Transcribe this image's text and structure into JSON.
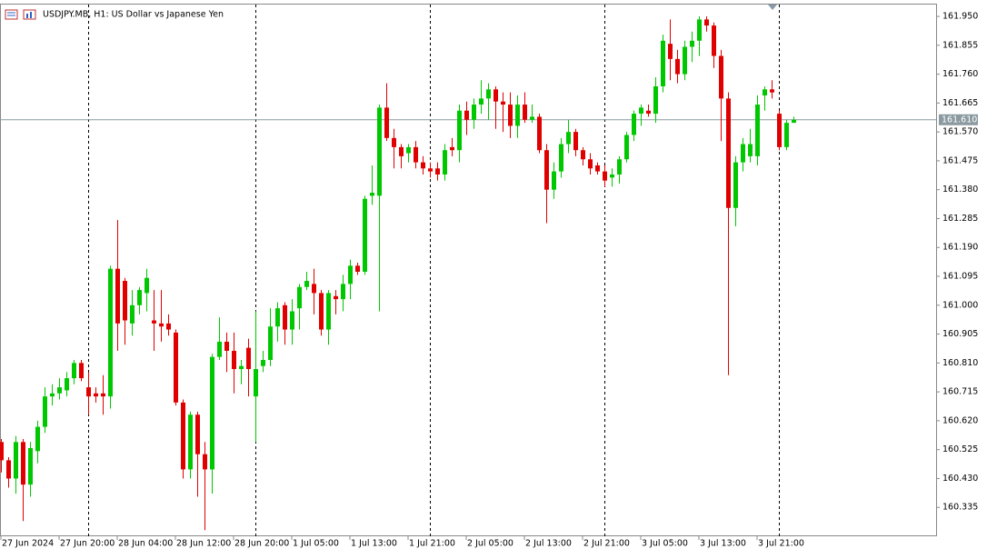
{
  "chart_data": {
    "type": "candlestick",
    "title": "USDJPY.MB, H1:  US Dollar vs Japanese Yen",
    "categories": [
      "27 Jun 2024",
      null,
      null,
      null,
      null,
      null,
      null,
      null,
      "27 Jun 20:00",
      null,
      null,
      null,
      null,
      null,
      null,
      null,
      "28 Jun 04:00",
      null,
      null,
      null,
      null,
      null,
      null,
      null,
      "28 Jun 12:00",
      null,
      null,
      null,
      null,
      null,
      null,
      null,
      "28 Jun 20:00",
      null,
      null,
      null,
      null,
      null,
      null,
      null,
      "1 Jul 05:00",
      null,
      null,
      null,
      null,
      null,
      null,
      null,
      "1 Jul 13:00",
      null,
      null,
      null,
      null,
      null,
      null,
      null,
      "1 Jul 21:00",
      null,
      null,
      null,
      null,
      null,
      null,
      null,
      "2 Jul 05:00",
      null,
      null,
      null,
      null,
      null,
      null,
      null,
      "2 Jul 13:00",
      null,
      null,
      null,
      null,
      null,
      null,
      null,
      "2 Jul 21:00",
      null,
      null,
      null,
      null,
      null,
      null,
      null,
      "3 Jul 05:00",
      null,
      null,
      null,
      null,
      null,
      null,
      null,
      "3 Jul 13:00",
      null,
      null,
      null,
      null,
      null,
      null,
      null,
      "3 Jul 21:00",
      null,
      null,
      null,
      null,
      null
    ],
    "open": [
      160.55,
      160.49,
      160.43,
      160.55,
      160.41,
      160.52,
      160.6,
      160.7,
      160.71,
      160.72,
      160.76,
      160.81,
      160.73,
      160.71,
      160.71,
      160.7,
      161.12,
      161.08,
      160.94,
      161.0,
      161.04,
      160.95,
      160.94,
      160.94,
      160.91,
      160.68,
      160.46,
      160.64,
      160.51,
      160.46,
      160.83,
      160.88,
      160.85,
      160.79,
      160.86,
      160.7,
      160.8,
      160.82,
      160.93,
      161.0,
      160.92,
      160.99,
      161.06,
      161.07,
      161.04,
      160.92,
      161.03,
      161.02,
      161.07,
      161.13,
      161.11,
      161.36,
      161.36,
      161.65,
      161.55,
      161.52,
      161.5,
      161.52,
      161.47,
      161.45,
      161.45,
      161.43,
      161.52,
      161.51,
      161.64,
      161.61,
      161.66,
      161.68,
      161.71,
      161.67,
      161.66,
      161.59,
      161.66,
      161.61,
      161.62,
      161.51,
      161.38,
      161.44,
      161.53,
      161.57,
      161.51,
      161.48,
      161.46,
      161.44,
      161.42,
      161.43,
      161.48,
      161.56,
      161.63,
      161.64,
      161.63,
      161.72,
      161.86,
      161.81,
      161.76,
      161.85,
      161.87,
      161.94,
      161.92,
      161.82,
      161.68,
      161.32,
      161.47,
      161.49,
      161.49,
      161.69,
      161.71,
      161.63,
      161.52,
      161.6
    ],
    "high": [
      160.56,
      160.5,
      160.57,
      160.56,
      160.55,
      160.62,
      160.73,
      160.74,
      160.76,
      160.78,
      160.82,
      160.82,
      160.78,
      160.73,
      160.77,
      161.13,
      161.28,
      161.09,
      161.05,
      161.06,
      161.12,
      161.05,
      161.05,
      160.97,
      160.92,
      160.69,
      160.65,
      160.65,
      160.55,
      160.84,
      160.96,
      160.91,
      160.91,
      160.82,
      160.89,
      160.98,
      160.85,
      160.99,
      161.01,
      161.01,
      161.02,
      161.07,
      161.11,
      161.12,
      161.05,
      161.05,
      161.05,
      161.1,
      161.15,
      161.14,
      161.36,
      161.46,
      161.66,
      161.73,
      161.58,
      161.53,
      161.53,
      161.54,
      161.49,
      161.47,
      161.47,
      161.53,
      161.55,
      161.66,
      161.67,
      161.68,
      161.74,
      161.73,
      161.72,
      161.7,
      161.7,
      161.69,
      161.7,
      161.66,
      161.63,
      161.53,
      161.47,
      161.55,
      161.61,
      161.58,
      161.52,
      161.5,
      161.47,
      161.46,
      161.45,
      161.49,
      161.57,
      161.64,
      161.66,
      161.66,
      161.75,
      161.89,
      161.94,
      161.84,
      161.87,
      161.9,
      161.95,
      161.95,
      161.93,
      161.84,
      161.7,
      161.49,
      161.55,
      161.58,
      161.69,
      161.72,
      161.74,
      161.64,
      161.61,
      161.62
    ],
    "low": [
      160.45,
      160.4,
      160.38,
      160.29,
      160.37,
      160.48,
      160.58,
      160.67,
      160.69,
      160.7,
      160.74,
      160.75,
      160.64,
      160.68,
      160.64,
      160.66,
      160.85,
      160.87,
      160.9,
      160.97,
      160.98,
      160.85,
      160.88,
      160.9,
      160.67,
      160.43,
      160.43,
      160.37,
      160.26,
      160.38,
      160.82,
      160.78,
      160.71,
      160.74,
      160.7,
      160.55,
      160.78,
      160.8,
      160.88,
      160.87,
      160.87,
      160.92,
      161.05,
      160.97,
      160.9,
      160.87,
      160.97,
      160.98,
      161.02,
      161.1,
      161.1,
      161.33,
      160.98,
      161.54,
      161.45,
      161.45,
      161.47,
      161.45,
      161.43,
      161.42,
      161.41,
      161.41,
      161.49,
      161.47,
      161.56,
      161.58,
      161.63,
      161.61,
      161.58,
      161.57,
      161.55,
      161.55,
      161.6,
      161.6,
      161.5,
      161.27,
      161.35,
      161.42,
      161.5,
      161.49,
      161.46,
      161.43,
      161.43,
      161.39,
      161.39,
      161.4,
      161.47,
      161.54,
      161.59,
      161.62,
      161.6,
      161.7,
      161.74,
      161.73,
      161.74,
      161.8,
      161.82,
      161.9,
      161.78,
      161.54,
      160.77,
      161.26,
      161.44,
      161.47,
      161.46,
      161.64,
      161.68,
      161.51,
      161.51,
      161.6
    ],
    "close": [
      160.49,
      160.43,
      160.55,
      160.41,
      160.53,
      160.6,
      160.7,
      160.71,
      160.73,
      160.76,
      160.81,
      160.76,
      160.7,
      160.7,
      160.7,
      161.12,
      160.94,
      160.95,
      161.0,
      161.05,
      161.09,
      160.94,
      160.93,
      160.92,
      160.68,
      160.46,
      160.64,
      160.51,
      160.46,
      160.83,
      160.88,
      160.85,
      160.79,
      160.8,
      160.79,
      160.79,
      160.82,
      160.93,
      160.99,
      160.92,
      160.98,
      161.06,
      161.08,
      161.04,
      160.92,
      161.04,
      161.02,
      161.07,
      161.13,
      161.11,
      161.35,
      161.37,
      161.65,
      161.55,
      161.52,
      161.49,
      161.52,
      161.47,
      161.45,
      161.44,
      161.43,
      161.51,
      161.51,
      161.64,
      161.61,
      161.66,
      161.68,
      161.71,
      161.67,
      161.66,
      161.59,
      161.66,
      161.61,
      161.62,
      161.51,
      161.38,
      161.44,
      161.53,
      161.57,
      161.51,
      161.48,
      161.45,
      161.44,
      161.41,
      161.43,
      161.48,
      161.56,
      161.63,
      161.65,
      161.63,
      161.72,
      161.87,
      161.81,
      161.76,
      161.85,
      161.87,
      161.94,
      161.92,
      161.82,
      161.68,
      161.32,
      161.47,
      161.53,
      161.53,
      161.66,
      161.71,
      161.7,
      161.52,
      161.6,
      161.61
    ],
    "up_color": "#00c800",
    "down_color": "#e00000",
    "ylim": [
      160.24,
      161.989
    ],
    "yticks": [
      {
        "value": 160.335,
        "label": "160.335"
      },
      {
        "value": 160.43,
        "label": "160.430"
      },
      {
        "value": 160.525,
        "label": "160.525"
      },
      {
        "value": 160.62,
        "label": "160.620"
      },
      {
        "value": 160.715,
        "label": "160.715"
      },
      {
        "value": 160.81,
        "label": "160.810"
      },
      {
        "value": 160.905,
        "label": "160.905"
      },
      {
        "value": 161.0,
        "label": "161.000"
      },
      {
        "value": 161.095,
        "label": "161.095"
      },
      {
        "value": 161.19,
        "label": "161.190"
      },
      {
        "value": 161.285,
        "label": "161.285"
      },
      {
        "value": 161.38,
        "label": "161.380"
      },
      {
        "value": 161.475,
        "label": "161.475"
      },
      {
        "value": 161.57,
        "label": "161.570"
      },
      {
        "value": 161.665,
        "label": "161.665"
      },
      {
        "value": 161.76,
        "label": "161.760"
      },
      {
        "value": 161.855,
        "label": "161.855"
      },
      {
        "value": 161.95,
        "label": "161.950"
      }
    ],
    "price_line": {
      "value": 161.61,
      "label": "161.610"
    },
    "period_separators": [
      12,
      35,
      59,
      83,
      107
    ]
  }
}
